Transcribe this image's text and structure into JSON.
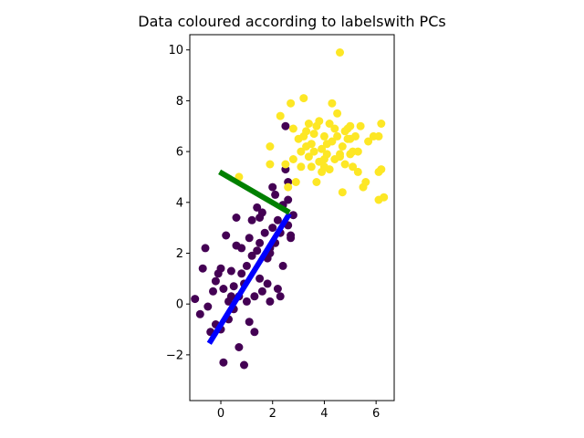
{
  "chart_data": {
    "type": "scatter",
    "title": "Data coloured according to labelswith PCs",
    "xlabel": "",
    "ylabel": "",
    "xlim": [
      -1.2,
      6.7
    ],
    "ylim": [
      -3.8,
      10.6
    ],
    "xticks": [
      0,
      2,
      4,
      6
    ],
    "xtick_labels": [
      "0",
      "2",
      "4",
      "6"
    ],
    "yticks": [
      -2,
      0,
      2,
      4,
      6,
      8,
      10
    ],
    "ytick_labels": [
      "−2",
      "0",
      "2",
      "4",
      "6",
      "8",
      "10"
    ],
    "grid": false,
    "legend": "none",
    "colors": {
      "class_0": "#440154",
      "class_1": "#fde725",
      "pc1": "#0000ff",
      "pc2": "#008000"
    },
    "series": [
      {
        "label_value": 0,
        "color": "#440154",
        "points": [
          [
            -1.0,
            0.2
          ],
          [
            -0.8,
            -0.4
          ],
          [
            -0.6,
            2.2
          ],
          [
            -0.7,
            1.4
          ],
          [
            -0.5,
            -0.1
          ],
          [
            -0.4,
            -1.1
          ],
          [
            -0.3,
            0.5
          ],
          [
            -0.2,
            0.9
          ],
          [
            -0.1,
            1.2
          ],
          [
            0.0,
            1.4
          ],
          [
            0.0,
            -1.0
          ],
          [
            0.1,
            0.6
          ],
          [
            0.1,
            -2.3
          ],
          [
            0.2,
            2.7
          ],
          [
            0.3,
            0.1
          ],
          [
            0.3,
            -0.6
          ],
          [
            0.4,
            1.3
          ],
          [
            0.5,
            0.7
          ],
          [
            0.5,
            -0.2
          ],
          [
            0.6,
            3.4
          ],
          [
            0.6,
            2.3
          ],
          [
            0.7,
            0.3
          ],
          [
            0.7,
            -1.7
          ],
          [
            0.8,
            2.2
          ],
          [
            0.8,
            1.2
          ],
          [
            0.9,
            0.8
          ],
          [
            0.9,
            -2.4
          ],
          [
            1.0,
            1.5
          ],
          [
            1.0,
            0.1
          ],
          [
            1.1,
            2.6
          ],
          [
            1.1,
            -0.7
          ],
          [
            1.2,
            1.9
          ],
          [
            1.2,
            3.3
          ],
          [
            1.3,
            0.3
          ],
          [
            1.3,
            -1.1
          ],
          [
            1.4,
            2.1
          ],
          [
            1.4,
            3.8
          ],
          [
            1.5,
            1.0
          ],
          [
            1.5,
            2.4
          ],
          [
            1.6,
            3.6
          ],
          [
            1.6,
            0.5
          ],
          [
            1.7,
            2.8
          ],
          [
            1.8,
            1.8
          ],
          [
            1.8,
            0.8
          ],
          [
            1.9,
            2.2
          ],
          [
            1.9,
            0.1
          ],
          [
            2.0,
            4.6
          ],
          [
            2.0,
            3.0
          ],
          [
            2.1,
            4.3
          ],
          [
            2.1,
            2.4
          ],
          [
            2.2,
            0.6
          ],
          [
            2.2,
            3.3
          ],
          [
            2.3,
            2.8
          ],
          [
            2.4,
            1.5
          ],
          [
            2.4,
            3.9
          ],
          [
            2.5,
            7.0
          ],
          [
            2.5,
            5.3
          ],
          [
            2.6,
            3.1
          ],
          [
            2.6,
            4.8
          ],
          [
            2.7,
            2.6
          ],
          [
            2.7,
            2.7
          ],
          [
            2.8,
            3.5
          ],
          [
            2.6,
            4.1
          ],
          [
            1.5,
            3.4
          ],
          [
            1.9,
            2.0
          ],
          [
            2.3,
            0.3
          ],
          [
            0.4,
            0.3
          ],
          [
            -0.2,
            -0.8
          ]
        ]
      },
      {
        "label_value": 1,
        "color": "#fde725",
        "points": [
          [
            0.7,
            5.0
          ],
          [
            1.9,
            6.2
          ],
          [
            1.9,
            5.5
          ],
          [
            2.3,
            7.4
          ],
          [
            2.5,
            5.5
          ],
          [
            2.6,
            4.6
          ],
          [
            2.7,
            7.9
          ],
          [
            2.8,
            5.7
          ],
          [
            2.8,
            6.9
          ],
          [
            2.9,
            4.8
          ],
          [
            3.0,
            6.5
          ],
          [
            3.1,
            6.0
          ],
          [
            3.1,
            5.4
          ],
          [
            3.2,
            8.1
          ],
          [
            3.2,
            6.6
          ],
          [
            3.3,
            6.8
          ],
          [
            3.4,
            5.8
          ],
          [
            3.4,
            7.1
          ],
          [
            3.5,
            6.3
          ],
          [
            3.5,
            5.4
          ],
          [
            3.6,
            6.7
          ],
          [
            3.7,
            4.8
          ],
          [
            3.7,
            7.0
          ],
          [
            3.8,
            5.6
          ],
          [
            3.8,
            7.2
          ],
          [
            3.9,
            6.1
          ],
          [
            3.9,
            5.2
          ],
          [
            4.0,
            6.6
          ],
          [
            4.0,
            5.7
          ],
          [
            4.1,
            5.9
          ],
          [
            4.1,
            6.3
          ],
          [
            4.2,
            5.3
          ],
          [
            4.2,
            7.1
          ],
          [
            4.3,
            7.9
          ],
          [
            4.3,
            6.4
          ],
          [
            4.4,
            5.7
          ],
          [
            4.4,
            6.9
          ],
          [
            4.5,
            7.5
          ],
          [
            4.5,
            6.6
          ],
          [
            4.6,
            5.9
          ],
          [
            4.6,
            9.9
          ],
          [
            4.7,
            4.4
          ],
          [
            4.7,
            6.2
          ],
          [
            4.8,
            6.8
          ],
          [
            4.8,
            5.5
          ],
          [
            4.9,
            6.5
          ],
          [
            4.9,
            6.9
          ],
          [
            5.0,
            5.9
          ],
          [
            5.0,
            7.0
          ],
          [
            5.1,
            6.0
          ],
          [
            5.1,
            5.4
          ],
          [
            5.2,
            6.6
          ],
          [
            5.3,
            5.2
          ],
          [
            5.3,
            6.0
          ],
          [
            5.4,
            7.0
          ],
          [
            5.5,
            4.6
          ],
          [
            5.6,
            4.8
          ],
          [
            5.7,
            6.4
          ],
          [
            5.9,
            6.6
          ],
          [
            6.1,
            4.1
          ],
          [
            6.1,
            5.2
          ],
          [
            6.1,
            6.6
          ],
          [
            6.2,
            7.1
          ],
          [
            6.3,
            4.2
          ],
          [
            6.2,
            5.3
          ],
          [
            3.3,
            6.2
          ],
          [
            4.0,
            5.4
          ],
          [
            4.6,
            5.8
          ],
          [
            5.0,
            6.5
          ],
          [
            3.6,
            6.0
          ]
        ]
      }
    ],
    "lines": [
      {
        "name_ref": "pc1",
        "color": "#0000ff",
        "from": [
          -0.45,
          -1.55
        ],
        "to": [
          2.65,
          3.55
        ]
      },
      {
        "name_ref": "pc2",
        "color": "#008000",
        "from": [
          -0.05,
          5.2
        ],
        "to": [
          2.65,
          3.6
        ]
      }
    ]
  }
}
